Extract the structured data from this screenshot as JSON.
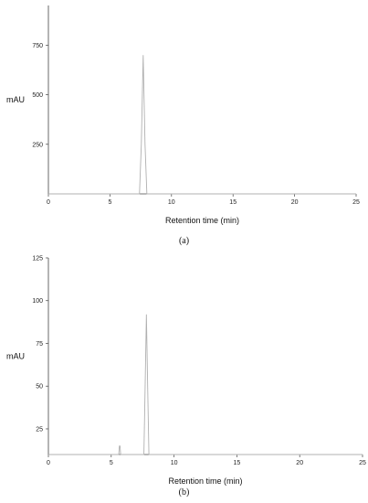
{
  "chart_data": [
    {
      "type": "line",
      "caption": "(a)",
      "xlabel": "Retention time (min)",
      "ylabel": "mAU",
      "xlim": [
        0,
        25
      ],
      "ylim": [
        0,
        950
      ],
      "xticks": [
        0,
        5,
        10,
        15,
        20,
        25
      ],
      "yticks": [
        250,
        500,
        750
      ],
      "grid": false,
      "series": [
        {
          "color": "#b0b0b0",
          "x": [
            0,
            7.4,
            7.55,
            7.7,
            7.85,
            8.0,
            25
          ],
          "y": [
            0,
            0,
            250,
            700,
            250,
            0,
            0
          ]
        }
      ]
    },
    {
      "type": "line",
      "caption": "(b)",
      "xlabel": "Retention time (min)",
      "ylabel": "mAU",
      "xlim": [
        0,
        25
      ],
      "ylim": [
        10,
        125
      ],
      "xticks": [
        0,
        5,
        10,
        15,
        20,
        25
      ],
      "yticks": [
        25,
        50,
        75,
        100,
        125
      ],
      "grid": false,
      "series": [
        {
          "color": "#b0b0b0",
          "x": [
            0,
            5.6,
            5.65,
            5.7,
            5.75,
            7.6,
            7.7,
            7.8,
            7.9,
            8.0,
            25
          ],
          "y": [
            10,
            10,
            15,
            15,
            10,
            10,
            50,
            92,
            50,
            10,
            10
          ]
        }
      ]
    }
  ]
}
